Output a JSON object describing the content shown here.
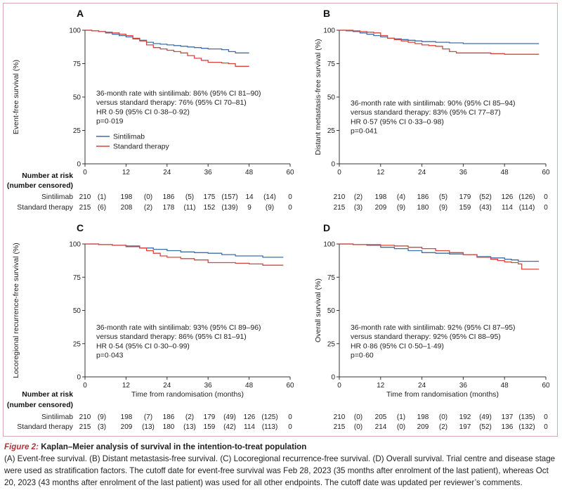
{
  "colors": {
    "sintilimab": "#3d6fa6",
    "standard": "#d9443a",
    "axis": "#333333",
    "frame": "#d9a7ad",
    "figure_label": "#b0343a"
  },
  "x_axis": {
    "ticks": [
      "0",
      "12",
      "24",
      "36",
      "48",
      "60"
    ],
    "tick_values": [
      0,
      12,
      24,
      36,
      48,
      60
    ],
    "label": "Time from randomisation (months)"
  },
  "y_axis": {
    "ticks": [
      "0",
      "25",
      "50",
      "75",
      "100"
    ],
    "tick_values": [
      0,
      25,
      50,
      75,
      100
    ]
  },
  "risk_table": {
    "title_line1": "Number at risk",
    "title_line2": "(number censored)",
    "row_labels": [
      "Sintilimab",
      "Standard therapy"
    ]
  },
  "chart_data": [
    {
      "type": "line",
      "panel": "A",
      "ylabel": "Event-free survival (%)",
      "xlabel": "",
      "xlim": [
        0,
        60
      ],
      "ylim": [
        0,
        100
      ],
      "legend": [
        "Sintilimab",
        "Standard therapy"
      ],
      "annotation": [
        "36-month rate with sintilimab: 86% (95% CI 81–90)",
        "versus standard therapy: 76% (95% CI 70–81)",
        "HR 0·59 (95% CI 0·38–0·92)",
        "p=0·019"
      ],
      "series": [
        {
          "name": "Sintilimab",
          "x": [
            0,
            2,
            4,
            6,
            8,
            10,
            12,
            14,
            16,
            18,
            20,
            22,
            24,
            26,
            28,
            30,
            32,
            34,
            36,
            38,
            40,
            42,
            44,
            46,
            48
          ],
          "y": [
            100,
            99.5,
            99,
            98,
            97,
            96,
            95,
            93.5,
            92.5,
            91,
            90,
            89.5,
            89,
            88.5,
            88,
            87.5,
            87,
            86.5,
            86,
            86,
            85.5,
            84,
            83,
            83,
            83
          ]
        },
        {
          "name": "Standard therapy",
          "x": [
            0,
            2,
            4,
            6,
            8,
            10,
            12,
            14,
            16,
            18,
            20,
            22,
            24,
            26,
            28,
            30,
            32,
            34,
            36,
            38,
            40,
            42,
            44,
            46,
            48
          ],
          "y": [
            100,
            99.5,
            99,
            98.5,
            98,
            97,
            96,
            94,
            92,
            89,
            87,
            86,
            85,
            84,
            83,
            81,
            79,
            77.5,
            76,
            76,
            75.5,
            75,
            73,
            73,
            73
          ]
        }
      ],
      "risk": [
        [
          "210",
          "(1)",
          "198",
          "(0)",
          "186",
          "(5)",
          "175",
          "(157)",
          "14",
          "(14)",
          "0"
        ],
        [
          "215",
          "(6)",
          "208",
          "(2)",
          "178",
          "(11)",
          "152",
          "(139)",
          "9",
          "(9)",
          "0"
        ]
      ]
    },
    {
      "type": "line",
      "panel": "B",
      "ylabel": "Distant metastasis-free survival (%)",
      "xlabel": "",
      "xlim": [
        0,
        60
      ],
      "ylim": [
        0,
        100
      ],
      "annotation": [
        "36-month rate with sintilimab: 90% (95% CI 85–94)",
        "versus standard therapy: 83% (95% CI 77–87)",
        "HR 0·57 (95% CI 0·33–0·98)",
        "p=0·041"
      ],
      "series": [
        {
          "name": "Sintilimab",
          "x": [
            0,
            2,
            4,
            6,
            8,
            10,
            12,
            14,
            16,
            18,
            20,
            22,
            24,
            28,
            32,
            36,
            40,
            44,
            48,
            52,
            56,
            58
          ],
          "y": [
            100,
            99.5,
            99,
            98,
            97,
            96,
            95,
            94,
            93.5,
            93,
            92.5,
            92,
            91.5,
            91,
            90.5,
            90,
            90,
            90,
            90,
            90,
            90,
            90
          ]
        },
        {
          "name": "Standard therapy",
          "x": [
            0,
            2,
            4,
            6,
            8,
            10,
            12,
            14,
            16,
            18,
            20,
            22,
            24,
            26,
            28,
            30,
            32,
            34,
            36,
            40,
            44,
            48,
            52,
            56,
            58
          ],
          "y": [
            100,
            100,
            99.5,
            99,
            98.5,
            98,
            96,
            94,
            93,
            92,
            91,
            90,
            89,
            88.5,
            88,
            86,
            84,
            83,
            83,
            83,
            82.5,
            82,
            82,
            82,
            82
          ]
        }
      ],
      "risk": [
        [
          "210",
          "(2)",
          "198",
          "(4)",
          "186",
          "(5)",
          "179",
          "(52)",
          "126",
          "(126)",
          "0"
        ],
        [
          "215",
          "(3)",
          "209",
          "(9)",
          "180",
          "(9)",
          "159",
          "(43)",
          "114",
          "(114)",
          "0"
        ]
      ]
    },
    {
      "type": "line",
      "panel": "C",
      "ylabel": "Locoregional recurrence-free survival (%)",
      "xlabel": "Time from randomisation (months)",
      "xlim": [
        0,
        60
      ],
      "ylim": [
        0,
        100
      ],
      "annotation": [
        "36-month rate with sintilimab: 93% (95% CI 89–96)",
        "versus standard therapy: 86% (95% CI 81–91)",
        "HR 0·54 (95% CI 0·30–0·99)",
        "p=0·043"
      ],
      "series": [
        {
          "name": "Sintilimab",
          "x": [
            0,
            4,
            8,
            12,
            16,
            20,
            24,
            28,
            32,
            36,
            40,
            44,
            48,
            52,
            56,
            58
          ],
          "y": [
            100,
            99.5,
            99,
            98,
            97,
            96,
            95,
            94,
            93.5,
            93,
            92,
            91,
            91,
            90,
            90,
            90
          ]
        },
        {
          "name": "Standard therapy",
          "x": [
            0,
            4,
            8,
            12,
            16,
            18,
            20,
            22,
            24,
            28,
            32,
            36,
            40,
            44,
            48,
            52,
            56,
            58
          ],
          "y": [
            100,
            99.5,
            99,
            98.5,
            97,
            95,
            93,
            91,
            90,
            89,
            88,
            86,
            86,
            85.5,
            85,
            84,
            84,
            84
          ]
        }
      ],
      "risk": [
        [
          "210",
          "(9)",
          "198",
          "(7)",
          "186",
          "(2)",
          "179",
          "(49)",
          "126",
          "(125)",
          "0"
        ],
        [
          "215",
          "(3)",
          "209",
          "(13)",
          "180",
          "(13)",
          "159",
          "(42)",
          "114",
          "(113)",
          "0"
        ]
      ]
    },
    {
      "type": "line",
      "panel": "D",
      "ylabel": "Overall survival (%)",
      "xlabel": "Time from randomisation (months)",
      "xlim": [
        0,
        60
      ],
      "ylim": [
        0,
        100
      ],
      "annotation": [
        "36-month rate with sintilimab: 92% (95% CI 87–95)",
        "versus standard therapy: 92% (95% CI 88–95)",
        "HR 0·86 (95% CI 0·50–1·49)",
        "p=0·60"
      ],
      "series": [
        {
          "name": "Sintilimab",
          "x": [
            0,
            4,
            8,
            12,
            16,
            20,
            24,
            28,
            32,
            36,
            40,
            44,
            48,
            50,
            52,
            54,
            56,
            58
          ],
          "y": [
            100,
            99.5,
            99,
            97.5,
            96.5,
            95,
            93.5,
            93,
            92.5,
            92,
            90.5,
            89.5,
            88.5,
            88,
            87,
            87,
            87,
            87
          ]
        },
        {
          "name": "Standard therapy",
          "x": [
            0,
            4,
            8,
            12,
            16,
            20,
            24,
            28,
            32,
            36,
            40,
            44,
            46,
            48,
            50,
            52,
            53,
            54,
            56,
            58
          ],
          "y": [
            100,
            99.5,
            99.5,
            99,
            98.5,
            97.5,
            96.5,
            95,
            93.5,
            92,
            90,
            88.5,
            87.5,
            86.5,
            86,
            85,
            81,
            81,
            81,
            81
          ]
        }
      ],
      "risk": [
        [
          "210",
          "(0)",
          "205",
          "(1)",
          "198",
          "(0)",
          "192",
          "(49)",
          "137",
          "(135)",
          "0"
        ],
        [
          "215",
          "(0)",
          "214",
          "(0)",
          "209",
          "(2)",
          "197",
          "(52)",
          "136",
          "(132)",
          "0"
        ]
      ]
    }
  ],
  "caption": {
    "figure_number": "Figure 2:",
    "title": "Kaplan–Meier analysis of survival in the intention-to-treat population",
    "body": "(A) Event-free survival. (B) Distant metastasis-free survival. (C) Locoregional recurrence-free survival. (D) Overall survival. Trial centre and disease stage were used as stratification factors. The cutoff date for event-free survival was Feb 28, 2023 (35 months after enrolment of the last patient), whereas Oct 20, 2023 (43 months after enrolment of the last patient) was used for all other endpoints. The cutoff date was updated per reviewer’s comments."
  }
}
